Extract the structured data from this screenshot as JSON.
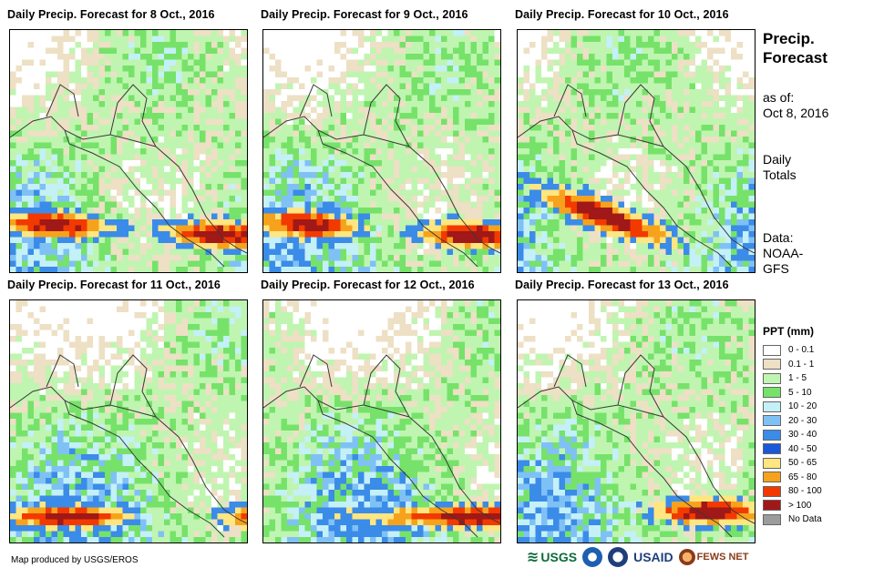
{
  "panels": [
    {
      "title": "Daily Precip. Forecast for 8 Oct., 2016",
      "seed": 11,
      "rain_band": "south-strong"
    },
    {
      "title": "Daily Precip. Forecast for 9 Oct., 2016",
      "seed": 23,
      "rain_band": "south-strong"
    },
    {
      "title": "Daily Precip. Forecast for 10 Oct., 2016",
      "seed": 37,
      "rain_band": "pacific-cluster"
    },
    {
      "title": "Daily Precip. Forecast for 11 Oct., 2016",
      "seed": 41,
      "rain_band": "south-moderate"
    },
    {
      "title": "Daily Precip. Forecast for 12 Oct., 2016",
      "seed": 53,
      "rain_band": "south-east"
    },
    {
      "title": "Daily Precip. Forecast for 13 Oct., 2016",
      "seed": 67,
      "rain_band": "panama"
    }
  ],
  "side": {
    "title_line1": "Precip.",
    "title_line2": "Forecast",
    "asof_label": "as of:",
    "asof_date": "Oct 8, 2016",
    "totals_line1": "Daily",
    "totals_line2": "Totals",
    "data_line1": "Data:",
    "data_line2": "NOAA-",
    "data_line3": "GFS"
  },
  "legend": {
    "title": "PPT (mm)",
    "items": [
      {
        "label": "0 - 0.1",
        "color": "#ffffff"
      },
      {
        "label": "0.1 - 1",
        "color": "#ede0c4"
      },
      {
        "label": "1 - 5",
        "color": "#bff5b0"
      },
      {
        "label": "5 - 10",
        "color": "#76e26a"
      },
      {
        "label": "10 - 20",
        "color": "#c4f0f7"
      },
      {
        "label": "20 - 30",
        "color": "#7fc1f5"
      },
      {
        "label": "30 - 40",
        "color": "#3b8be8"
      },
      {
        "label": "40 - 50",
        "color": "#1a58d9"
      },
      {
        "label": "50 - 65",
        "color": "#ffe680"
      },
      {
        "label": "65 - 80",
        "color": "#f7a21c"
      },
      {
        "label": "80 - 100",
        "color": "#f23a00"
      },
      {
        "label": "> 100",
        "color": "#a01818"
      },
      {
        "label": "No Data",
        "color": "#9c9c9c"
      }
    ]
  },
  "credit": "Map produced by USGS/EROS",
  "logos": {
    "usgs": "USGS",
    "usaid": "USAID",
    "fews": "FEWS NET"
  }
}
